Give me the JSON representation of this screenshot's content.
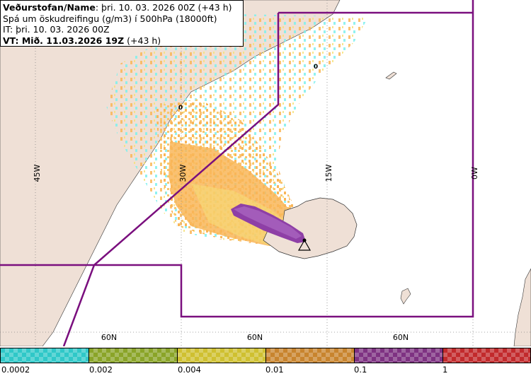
{
  "info": {
    "line1_bold": "Veðurstofan/Name",
    "line1_rest": ": þri. 10. 03. 2026 00Z (+43 h)",
    "line2": "Spá um öskudreifingu (g/m3) í 500hPa (18000ft)",
    "line3": "IT: þri. 10. 03. 2026 00Z",
    "line4_bold": "VT: Mið. 11.03.2026 19Z",
    "line4_rest": " (+43 h)"
  },
  "map": {
    "longitude_labels": [
      "45W",
      "30W",
      "15W",
      "0W"
    ],
    "latitude_labels": [
      "60N",
      "60N",
      "60N"
    ],
    "zero_markers": [
      "0",
      "0"
    ],
    "colors": {
      "land": "#efe0d6",
      "sea": "#ffffff",
      "boundary": "#7a0f7e",
      "plume_orange": "#f9b658",
      "plume_yellow": "#f5e27a",
      "plume_cyan": "#7ef0ee",
      "plume_purple": "#8e3fa6",
      "plume_violet": "#b070c8"
    }
  },
  "legend": {
    "labels": [
      "0.0002",
      "0.002",
      "0.004",
      "0.01",
      "0.1",
      "1"
    ],
    "colors": [
      "#2fc8c8",
      "#8aa428",
      "#cfc030",
      "#c8842e",
      "#7e3282",
      "#c22a2c"
    ]
  }
}
